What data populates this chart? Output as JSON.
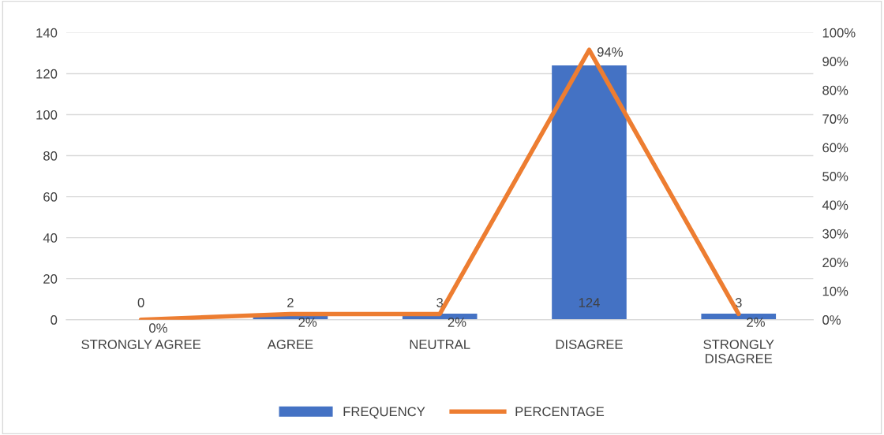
{
  "chart_data": {
    "type": "bar",
    "categories": [
      "STRONGLY AGREE",
      "AGREE",
      "NEUTRAL",
      "DISAGREE",
      "STRONGLY\nDISAGREE"
    ],
    "series": [
      {
        "name": "FREQUENCY",
        "color": "#4472c4",
        "values": [
          0,
          2,
          3,
          124,
          3
        ]
      },
      {
        "name": "PERCENTAGE",
        "type": "line",
        "axis": "y2",
        "color": "#ed7d31",
        "values": [
          0,
          2,
          2,
          94,
          2
        ],
        "value_labels": [
          "0%",
          "2%",
          "2%",
          "94%",
          "2%"
        ]
      }
    ],
    "ylim": [
      0,
      140
    ],
    "yticks": [
      0,
      20,
      40,
      60,
      80,
      100,
      120,
      140
    ],
    "y2lim": [
      0,
      100
    ],
    "y2ticks": [
      {
        "value": 0,
        "label": "0%"
      },
      {
        "value": 10,
        "label": "10%"
      },
      {
        "value": 20,
        "label": "20%"
      },
      {
        "value": 30,
        "label": "30%"
      },
      {
        "value": 40,
        "label": "40%"
      },
      {
        "value": 50,
        "label": "50%"
      },
      {
        "value": 60,
        "label": "60%"
      },
      {
        "value": 70,
        "label": "70%"
      },
      {
        "value": 80,
        "label": "80%"
      },
      {
        "value": 90,
        "label": "90%"
      },
      {
        "value": 100,
        "label": "100%"
      }
    ],
    "grid": "y",
    "legend": "bottom",
    "marker": "none",
    "line_style": "solid",
    "data_labels": true
  }
}
